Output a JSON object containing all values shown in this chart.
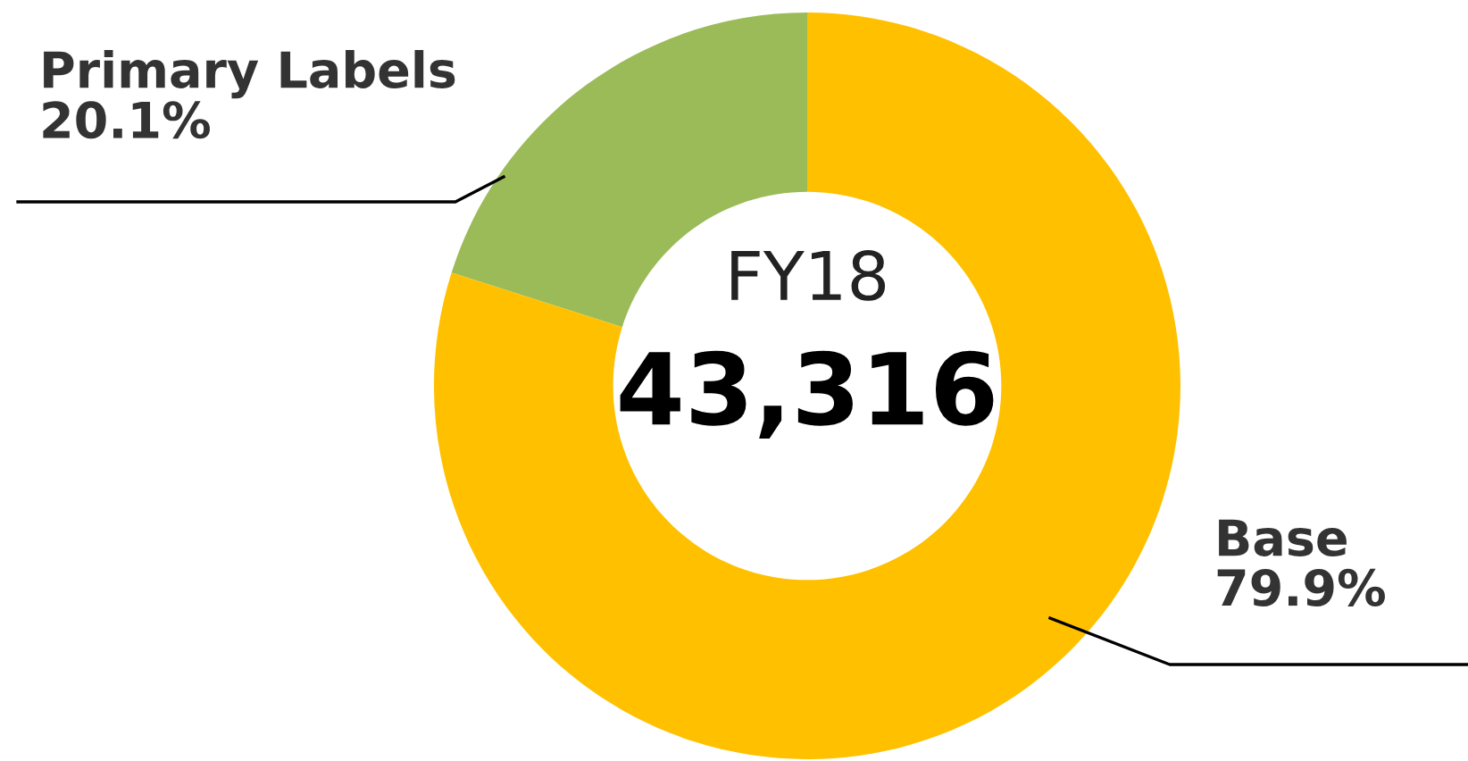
{
  "chart_data": {
    "type": "donut",
    "categories": [
      "Primary Labels",
      "Base"
    ],
    "values": [
      20.1,
      79.9
    ],
    "value_labels": [
      "20.1%",
      "79.9%"
    ],
    "colors": [
      "#9bbb59",
      "#ffc000"
    ],
    "annotations": [
      "FY18",
      "43,316"
    ]
  }
}
